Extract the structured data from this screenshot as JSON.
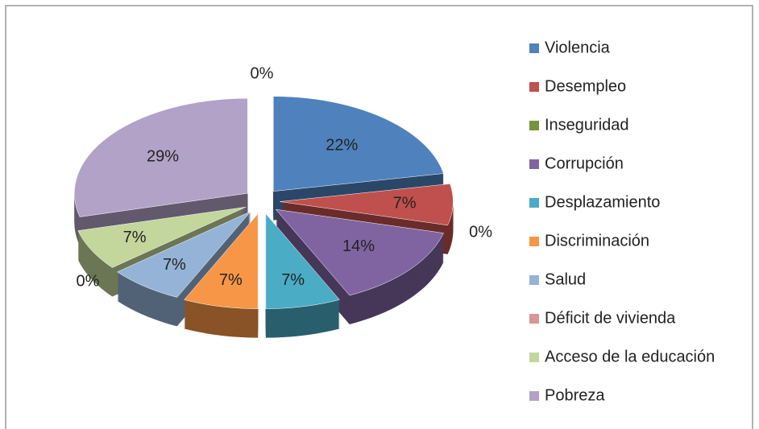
{
  "chart_data": {
    "type": "pie",
    "three_d": true,
    "exploded": true,
    "categories": [
      "Violencia",
      "Desempleo",
      "Inseguridad",
      "Corrupción",
      "Desplazamiento",
      "Discriminación",
      "Salud",
      "Déficit de vivienda",
      "Acceso de la educación",
      "Pobreza",
      null
    ],
    "values": [
      22,
      7,
      0,
      14,
      7,
      7,
      7,
      0,
      7,
      29,
      0
    ],
    "value_labels": [
      "22%",
      "7%",
      "0%",
      "14%",
      "7%",
      "7%",
      "7%",
      "0%",
      "7%",
      "29%",
      "0%"
    ],
    "colors": [
      "#4f81bd",
      "#c0504d",
      "#77933c",
      "#8064a2",
      "#4bacc6",
      "#f79646",
      "#95b3d7",
      "#d99694",
      "#c3d69b",
      "#b3a2c7",
      "#7f7f7f"
    ],
    "legend": "right"
  }
}
